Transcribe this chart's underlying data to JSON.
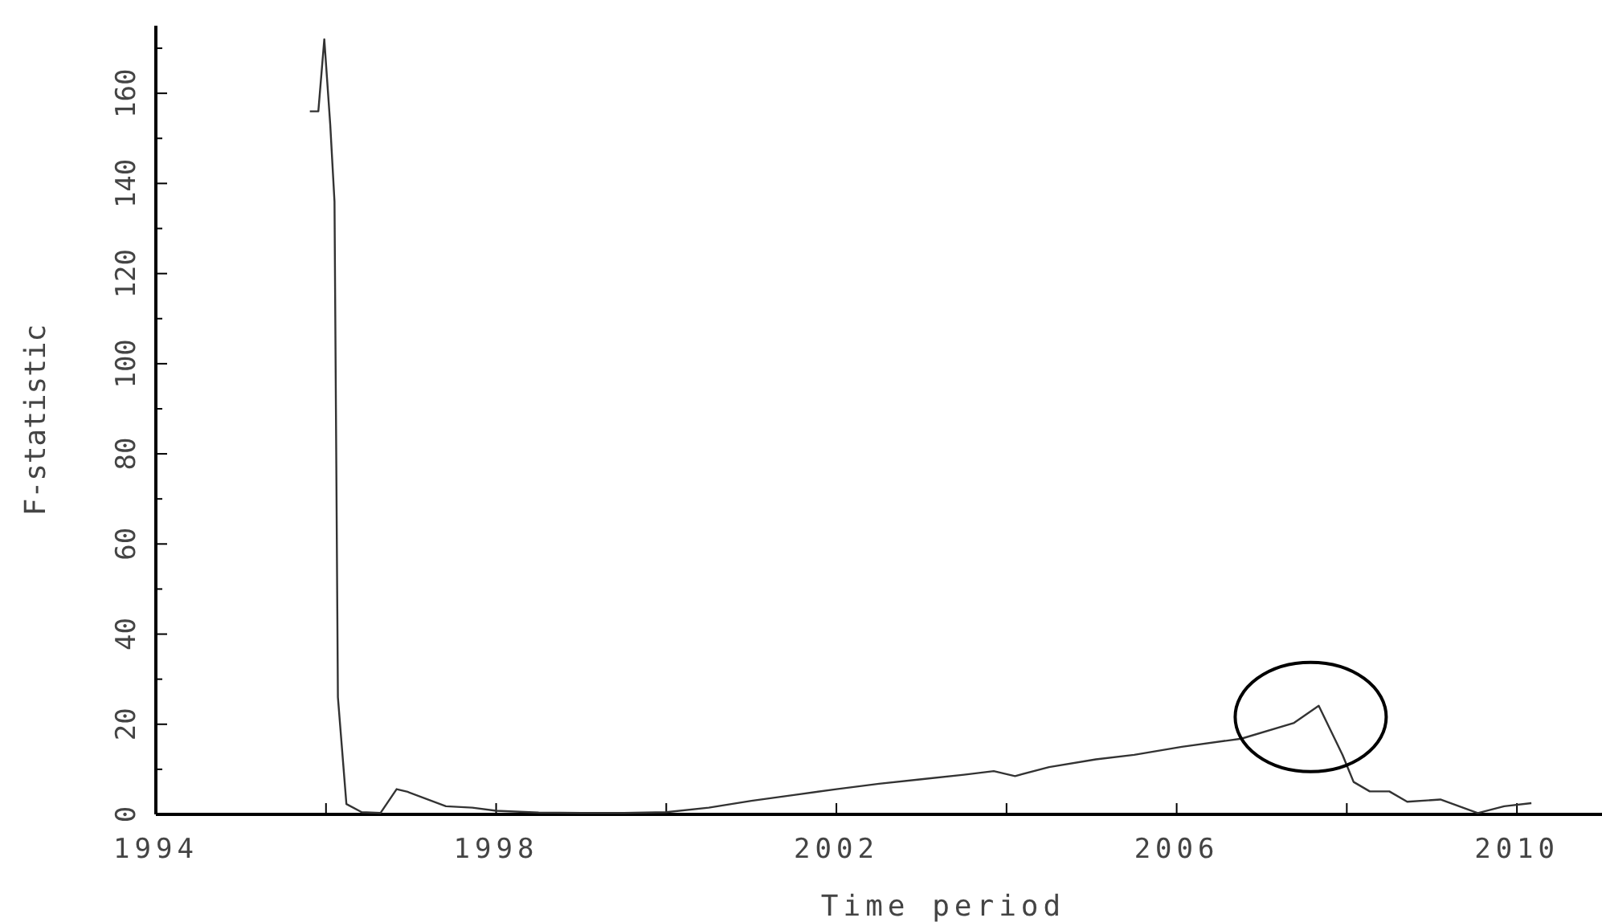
{
  "chart_data": {
    "type": "line",
    "xlabel": "Time period",
    "ylabel": "F-statistic",
    "x": [
      1995.81,
      1995.91,
      1995.98,
      1996.05,
      1996.1,
      1996.14,
      1996.24,
      1996.42,
      1996.64,
      1996.83,
      1996.96,
      1997.41,
      1997.72,
      1998.0,
      1998.5,
      1999.0,
      1999.5,
      2000.0,
      2000.5,
      2001.0,
      2001.5,
      2002.0,
      2002.5,
      2003.0,
      2003.5,
      2003.85,
      2004.1,
      2004.5,
      2005.05,
      2005.5,
      2006.06,
      2006.76,
      2007.38,
      2007.67,
      2007.95,
      2008.08,
      2008.27,
      2008.5,
      2008.71,
      2009.1,
      2009.54,
      2009.85,
      2010.17
    ],
    "series": [
      {
        "color": "#333333",
        "values": [
          156,
          156,
          172,
          153,
          136,
          26,
          2.3,
          0.5,
          0.3,
          5.6,
          5,
          1.8,
          1.5,
          0.8,
          0.4,
          0.3,
          0.3,
          0.5,
          1.5,
          3,
          4.3,
          5.6,
          6.8,
          7.8,
          8.8,
          9.6,
          8.5,
          10.5,
          12.2,
          13.2,
          15,
          16.8,
          20.3,
          24.1,
          13.2,
          7.2,
          5.1,
          5.1,
          2.8,
          3.3,
          0.3,
          1.8,
          2.5
        ]
      }
    ],
    "xlim": [
      1994,
      2011
    ],
    "xticks": [
      1994,
      {
        "value": 1996,
        "label": null
      },
      1998,
      {
        "value": 2000,
        "label": null
      },
      2002,
      {
        "value": 2004,
        "label": null
      },
      2006,
      {
        "value": 2008,
        "label": null
      },
      2010
    ],
    "ylim": [
      0,
      175
    ],
    "yticks": [
      0,
      {
        "value": 10,
        "label": null
      },
      20,
      {
        "value": 30,
        "label": null
      },
      40,
      {
        "value": 50,
        "label": null
      },
      60,
      {
        "value": 70,
        "label": null
      },
      80,
      {
        "value": 90,
        "label": null
      },
      100,
      {
        "value": 110,
        "label": null
      },
      120,
      {
        "value": 130,
        "label": null
      },
      140,
      {
        "value": 150,
        "label": null
      },
      160,
      {
        "value": 170,
        "label": null
      }
    ],
    "marker": "none",
    "line_style": "solid"
  }
}
